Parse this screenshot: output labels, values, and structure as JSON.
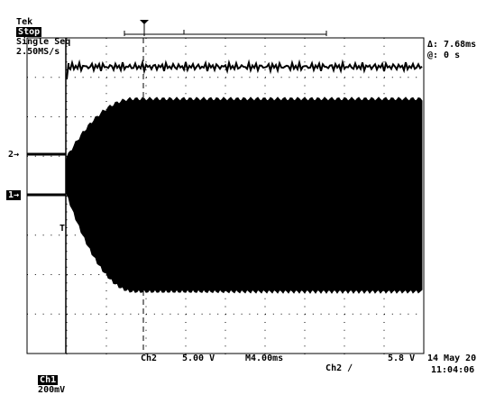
{
  "header": {
    "brand": "Tek",
    "run_state": "Stop",
    "mode": "Single Seq",
    "sample_rate": "2.50MS/s"
  },
  "cursor_readout": {
    "delta": "Δ: 7.68ms",
    "at": "@: 0 s"
  },
  "channel_markers": {
    "ch2": "2",
    "ch1": "1",
    "trigger": "T"
  },
  "footer": {
    "ch1_label": "Ch1",
    "ch1_scale": "200mV",
    "ch2_label": "Ch2",
    "ch2_scale": "5.00 V",
    "timebase": "M4.00ms",
    "trigger_src": "Ch2",
    "trigger_slope": "∕",
    "trigger_level": "5.8 V",
    "date": "14 May 20",
    "time": "11:04:06"
  },
  "colors": {
    "trace": "#000000",
    "grid": "#000000",
    "background": "#ffffff"
  }
}
